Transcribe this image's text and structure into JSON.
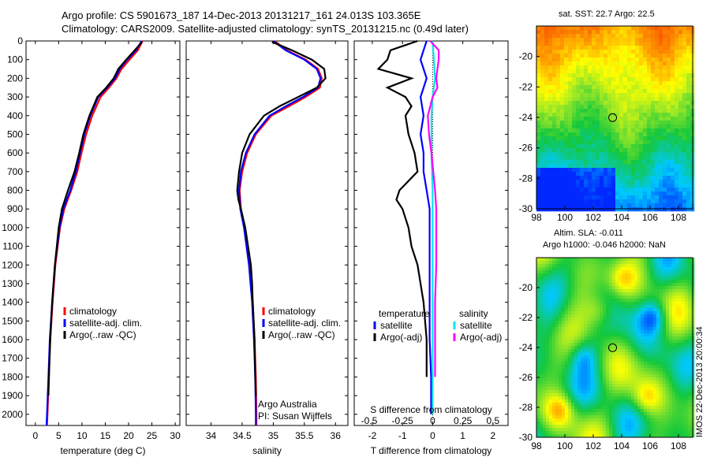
{
  "title_line1": "Argo profile: CS 5901673_187 14-Dec-2013 20131217_161 24.013S 103.365E",
  "title_line2": "Climatology: CARS2009. Satellite-adjusted climatology: synTS_20131215.nc (0.49d later)",
  "footer_text": "IMOS 22-Dec-2013 20:00:34",
  "colors": {
    "climatology": "#ff0000",
    "satellite": "#0000ff",
    "argo": "#000000",
    "sal_satellite": "#00e5ee",
    "sal_argo": "#ff00ff"
  },
  "chart_data": [
    {
      "type": "line",
      "xlabel": "temperature (deg C)",
      "ylabel": "",
      "xlim": [
        -2,
        31
      ],
      "ylim": [
        2060,
        0
      ],
      "xticks": [
        0,
        5,
        10,
        15,
        20,
        25,
        30
      ],
      "yticks": [
        0,
        100,
        200,
        300,
        400,
        500,
        600,
        700,
        800,
        900,
        1000,
        1100,
        1200,
        1300,
        1400,
        1500,
        1600,
        1700,
        1800,
        1900,
        2000
      ],
      "legend": [
        "climatology",
        "satellite-adj. clim.",
        "Argo(..raw -QC)"
      ],
      "legend_position": "lower-right",
      "series": [
        {
          "name": "climatology",
          "color": "#ff0000",
          "depth": [
            0,
            50,
            100,
            150,
            200,
            250,
            300,
            400,
            500,
            600,
            700,
            800,
            900,
            1000,
            1200,
            1400,
            1600,
            1800,
            2000,
            2060
          ],
          "values": [
            23.0,
            22.0,
            20.2,
            18.5,
            17.4,
            15.8,
            14.0,
            12.2,
            10.9,
            9.9,
            9.0,
            7.7,
            6.2,
            5.3,
            4.3,
            3.7,
            3.2,
            2.9,
            2.6,
            2.5
          ]
        },
        {
          "name": "satellite-adj. clim.",
          "color": "#0000ff",
          "depth": [
            0,
            50,
            100,
            150,
            200,
            250,
            300,
            400,
            500,
            600,
            700,
            800,
            900,
            1000,
            1200,
            1400,
            1600,
            1800,
            2000,
            2060
          ],
          "values": [
            22.8,
            21.6,
            19.7,
            18.1,
            17.1,
            15.4,
            13.5,
            11.8,
            10.5,
            9.6,
            8.7,
            7.5,
            6.0,
            5.2,
            4.2,
            3.6,
            3.1,
            2.8,
            2.5,
            2.4
          ]
        },
        {
          "name": "Argo(..raw -QC)",
          "color": "#000000",
          "depth": [
            5,
            50,
            100,
            150,
            200,
            250,
            300,
            400,
            500,
            600,
            700,
            800,
            900,
            1000,
            1200,
            1400,
            1600,
            1800,
            1900
          ],
          "values": [
            22.9,
            21.3,
            19.5,
            17.8,
            16.8,
            15.2,
            13.3,
            11.6,
            10.3,
            9.4,
            8.4,
            7.0,
            5.7,
            5.0,
            4.2,
            3.6,
            3.2,
            2.9,
            2.8
          ]
        }
      ]
    },
    {
      "type": "line",
      "xlabel": "salinity",
      "ylabel": "",
      "xlim": [
        33.6,
        36.2
      ],
      "ylim": [
        2060,
        0
      ],
      "xticks": [
        34,
        34.5,
        35,
        35.5,
        36
      ],
      "legend": [
        "climatology",
        "satellite-adj. clim.",
        "Argo(..raw -QC)"
      ],
      "legend_position": "lower-right",
      "annotations": [
        "Argo Australia",
        "PI: Susan Wijffels"
      ],
      "series": [
        {
          "name": "climatology",
          "color": "#ff0000",
          "depth": [
            0,
            50,
            100,
            150,
            200,
            250,
            300,
            350,
            400,
            500,
            600,
            700,
            800,
            900,
            1000,
            1200,
            1400,
            1600,
            1800,
            2000,
            2060
          ],
          "values": [
            35.02,
            35.22,
            35.52,
            35.72,
            35.78,
            35.75,
            35.52,
            35.25,
            34.97,
            34.72,
            34.58,
            34.5,
            34.46,
            34.48,
            34.54,
            34.62,
            34.67,
            34.7,
            34.72,
            34.73,
            34.73
          ]
        },
        {
          "name": "satellite-adj. clim.",
          "color": "#0000ff",
          "depth": [
            0,
            50,
            100,
            150,
            200,
            250,
            300,
            350,
            400,
            500,
            600,
            700,
            800,
            900,
            1000,
            1200,
            1400,
            1600,
            1800,
            2000,
            2060
          ],
          "values": [
            35.0,
            35.2,
            35.5,
            35.7,
            35.76,
            35.72,
            35.48,
            35.2,
            34.94,
            34.7,
            34.56,
            34.48,
            34.45,
            34.47,
            34.53,
            34.61,
            34.66,
            34.69,
            34.71,
            34.72,
            34.72
          ]
        },
        {
          "name": "Argo(..raw -QC)",
          "color": "#000000",
          "depth": [
            5,
            50,
            100,
            150,
            200,
            250,
            300,
            350,
            400,
            500,
            600,
            700,
            800,
            850,
            900,
            1000,
            1200,
            1300,
            1400,
            1600,
            1800,
            1900
          ],
          "values": [
            34.98,
            35.3,
            35.62,
            35.82,
            35.84,
            35.7,
            35.4,
            35.1,
            34.85,
            34.62,
            34.5,
            34.45,
            34.42,
            34.44,
            34.48,
            34.55,
            34.64,
            34.66,
            34.67,
            34.7,
            34.71,
            34.72
          ]
        }
      ]
    },
    {
      "type": "line",
      "xlabel": "T difference from climatology",
      "xlabel_top": "S difference from climatology",
      "xlim": [
        -2.6,
        2.5
      ],
      "ylim": [
        2060,
        0
      ],
      "xticks": [
        -2,
        -1,
        0,
        1,
        2
      ],
      "xticks_top": [
        "-0.5",
        "-0.25",
        "0",
        "0.25",
        "0.5"
      ],
      "legend": [
        "temperature",
        "satellite",
        "Argo(-adj)",
        "salinity",
        "satellite",
        "Argo(-adj)"
      ],
      "series": [
        {
          "name": "satellite",
          "color": "#0000ff",
          "depth": [
            0,
            50,
            100,
            200,
            300,
            400,
            500,
            600,
            700,
            800,
            900,
            1000,
            1200,
            1400,
            1600,
            1800,
            2000
          ],
          "values": [
            -0.2,
            -0.3,
            -0.4,
            -0.2,
            -0.4,
            -0.3,
            -0.4,
            -0.3,
            -0.3,
            -0.2,
            -0.1,
            -0.1,
            -0.1,
            -0.1,
            -0.1,
            -0.05,
            -0.05
          ]
        },
        {
          "name": "Argo(-adj)",
          "color": "#000000",
          "depth": [
            0,
            50,
            100,
            150,
            200,
            250,
            300,
            350,
            400,
            500,
            600,
            700,
            800,
            850,
            900,
            1000,
            1100,
            1200,
            1300,
            1400,
            1600,
            1800
          ],
          "values": [
            -0.5,
            -1.4,
            -1.5,
            -1.8,
            -0.7,
            -1.5,
            -0.9,
            -0.7,
            -0.9,
            -0.8,
            -0.6,
            -0.5,
            -1.1,
            -1.2,
            -1.0,
            -0.8,
            -0.7,
            -0.5,
            -0.4,
            -0.3,
            -0.2,
            -0.2
          ]
        },
        {
          "name": "satellite",
          "color": "#00e5ee",
          "depth": [
            0,
            100,
            200,
            300,
            400,
            600,
            800,
            1000,
            1200,
            1400,
            1600,
            1800,
            2000
          ],
          "values": [
            0.0,
            0.01,
            0.02,
            0.0,
            -0.01,
            -0.01,
            0.0,
            0.0,
            0.0,
            0.0,
            0.0,
            0.0,
            0.0
          ]
        },
        {
          "name": "Argo(-adj)",
          "color": "#ff00ff",
          "depth": [
            0,
            50,
            100,
            150,
            200,
            250,
            300,
            400,
            500,
            600,
            800,
            900,
            1000,
            1200,
            1400,
            1600,
            1800
          ],
          "values": [
            -0.02,
            0.05,
            0.05,
            0.04,
            0.03,
            0.04,
            0.0,
            -0.04,
            -0.03,
            -0.01,
            0.02,
            0.03,
            0.03,
            0.03,
            0.02,
            0.02,
            0.02
          ]
        }
      ]
    },
    {
      "type": "heatmap",
      "title": "sat. SST: 22.7  Argo: 22.5",
      "xlim": [
        98,
        109
      ],
      "ylim": [
        -30,
        -18
      ],
      "xticks": [
        98,
        100,
        102,
        104,
        106,
        108
      ],
      "yticks": [
        -20,
        -22,
        -24,
        -26,
        -28,
        -30
      ],
      "marker": {
        "lon": 103.365,
        "lat": -24.013
      }
    },
    {
      "type": "heatmap",
      "title": "Altim. SLA: -0.011",
      "subtitle": "Argo h1000: -0.046 h2000: NaN",
      "xlim": [
        98,
        109
      ],
      "ylim": [
        -30,
        -18
      ],
      "xticks": [
        98,
        100,
        102,
        104,
        106,
        108
      ],
      "yticks": [
        -20,
        -22,
        -24,
        -26,
        -28,
        -30
      ],
      "marker": {
        "lon": 103.365,
        "lat": -24.013
      }
    }
  ]
}
